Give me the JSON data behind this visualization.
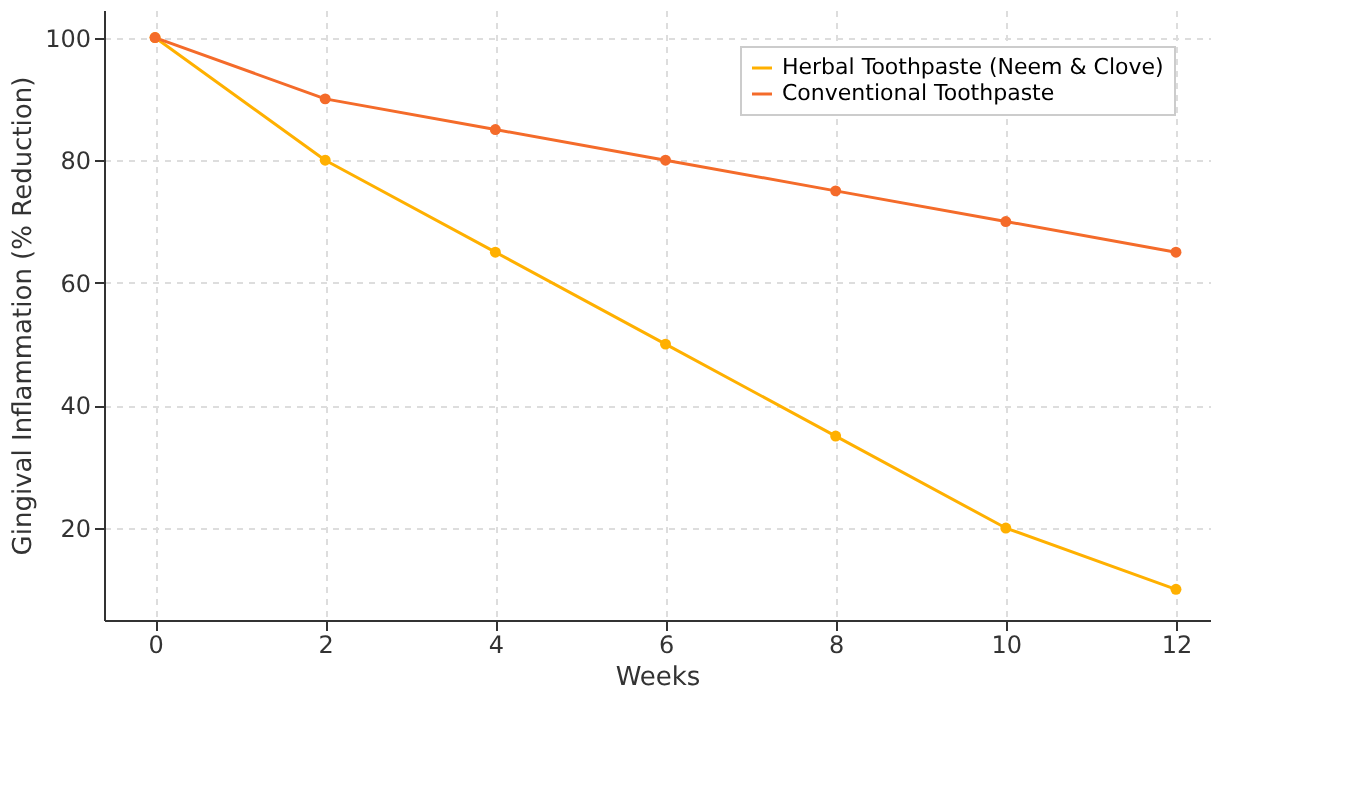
{
  "chart_data": {
    "type": "line",
    "xlabel": "Weeks",
    "ylabel": "Gingival Inflammation (% Reduction)",
    "x": [
      0,
      2,
      4,
      6,
      8,
      10,
      12
    ],
    "series": [
      {
        "name": "Herbal Toothpaste (Neem & Clove)",
        "color": "#ffb000",
        "values": [
          100,
          80,
          65,
          50,
          35,
          20,
          10
        ]
      },
      {
        "name": "Conventional Toothpaste",
        "color": "#f46b2a",
        "values": [
          100,
          90,
          85,
          80,
          75,
          70,
          65
        ]
      }
    ],
    "xlim": [
      -0.6,
      12.4
    ],
    "xticks": [
      0,
      2,
      4,
      6,
      8,
      10,
      12
    ],
    "ylim": [
      5,
      104.5
    ],
    "yticks": [
      20,
      40,
      60,
      80,
      100
    ],
    "grid": true,
    "legend": "top right",
    "marker": "circle",
    "line_style": "solid"
  }
}
